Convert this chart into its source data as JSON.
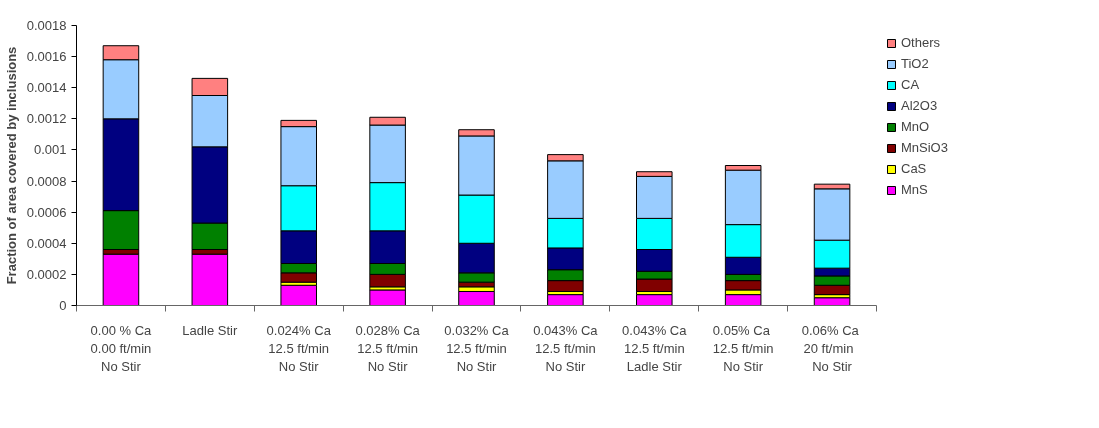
{
  "chart_data": {
    "type": "bar",
    "stacked": true,
    "ylabel": "Fraction of area covered by inclusions",
    "categories": [
      "0.00 % Ca\n0.00 ft/min\nNo Stir",
      "Ladle Stir",
      "0.024% Ca\n12.5 ft/min\nNo Stir",
      "0.028% Ca\n12.5 ft/min\nNo Stir",
      "0.032% Ca\n12.5 ft/min\nNo Stir",
      "0.043% Ca\n12.5 ft/min\nNo Stir",
      "0.043% Ca\n12.5 ft/min\nLadle Stir",
      "0.05%  Ca\n12.5 ft/min\nNo Stir",
      "0.06%  Ca\n20   ft/min\nNo Stir"
    ],
    "series": [
      {
        "name": "MnS",
        "color": "#ff00ff",
        "values": [
          0.00033,
          0.00033,
          0.00013,
          0.0001,
          9e-05,
          7e-05,
          7e-05,
          7e-05,
          5e-05
        ]
      },
      {
        "name": "CaS",
        "color": "#ffff00",
        "values": [
          null,
          null,
          2e-05,
          2e-05,
          3e-05,
          2e-05,
          2e-05,
          3e-05,
          2e-05
        ]
      },
      {
        "name": "MnSiO3",
        "color": "#800000",
        "values": [
          3e-05,
          3e-05,
          6e-05,
          8e-05,
          3e-05,
          7e-05,
          8e-05,
          6e-05,
          6e-05
        ]
      },
      {
        "name": "MnO",
        "color": "#008000",
        "values": [
          0.00025,
          0.00017,
          6e-05,
          7e-05,
          6e-05,
          7e-05,
          5e-05,
          4e-05,
          6e-05
        ]
      },
      {
        "name": "Al2O3",
        "color": "#000080",
        "values": [
          0.00059,
          0.00049,
          0.00021,
          0.00021,
          0.00019,
          0.00014,
          0.00014,
          0.00011,
          5e-05
        ]
      },
      {
        "name": "CA",
        "color": "#00ffff",
        "values": [
          null,
          null,
          0.00029,
          0.00031,
          0.00031,
          0.00019,
          0.0002,
          0.00021,
          0.00018
        ]
      },
      {
        "name": "TiO2",
        "color": "#99ccff",
        "values": [
          0.00038,
          0.00033,
          0.00038,
          0.00037,
          0.00038,
          0.00037,
          0.00027,
          0.00035,
          0.00033
        ]
      },
      {
        "name": "Others",
        "color": "#ff8080",
        "values": [
          9e-05,
          0.00011,
          4e-05,
          5e-05,
          4e-05,
          4e-05,
          3e-05,
          3e-05,
          3e-05
        ]
      }
    ],
    "ylim": [
      0,
      0.0018
    ],
    "yticks": [
      0,
      0.0002,
      0.0004,
      0.0006,
      0.0008,
      0.001,
      0.0012,
      0.0014,
      0.0016,
      0.0018
    ],
    "grid": false,
    "legend": "right"
  }
}
